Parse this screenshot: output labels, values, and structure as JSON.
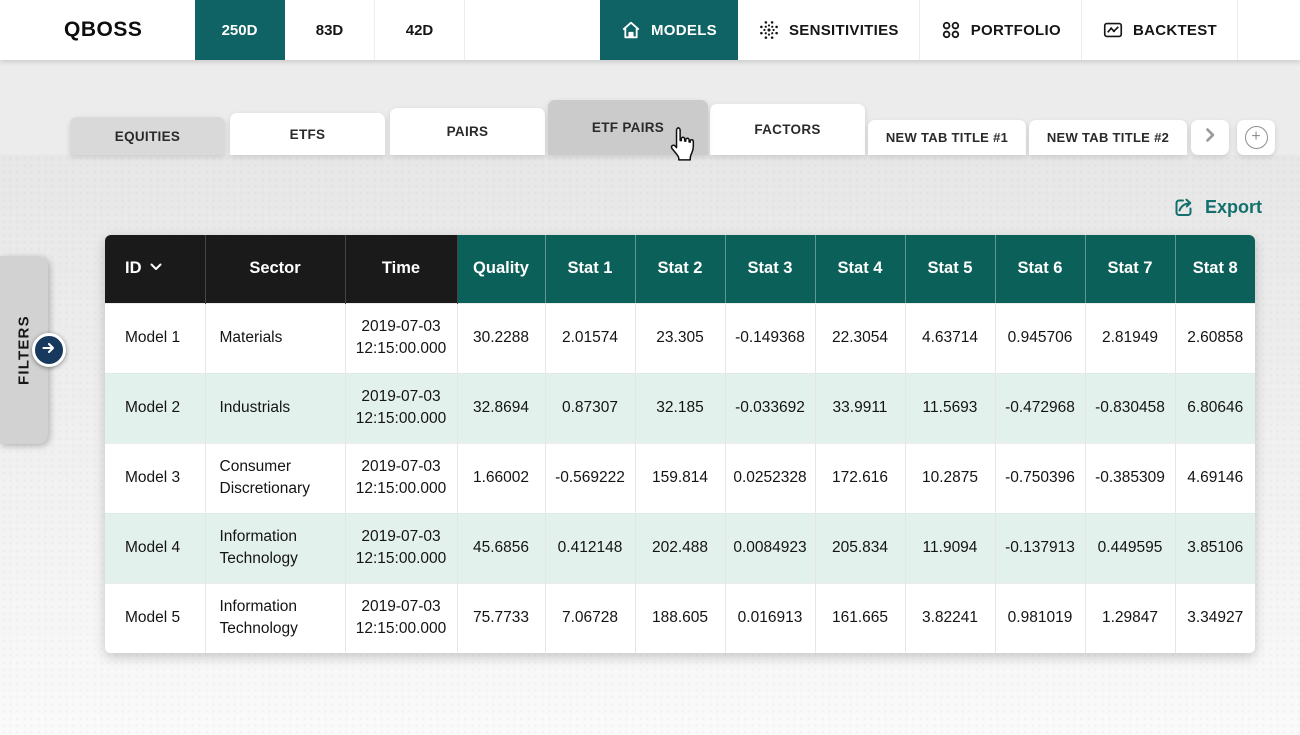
{
  "app": {
    "brand": "QBOSS"
  },
  "topbar": {
    "periods": [
      {
        "label": "250D",
        "active": true
      },
      {
        "label": "83D",
        "active": false
      },
      {
        "label": "42D",
        "active": false
      }
    ],
    "nav": [
      {
        "label": "MODELS",
        "icon": "home-icon",
        "active": true
      },
      {
        "label": "SENSITIVITIES",
        "icon": "burst-icon",
        "active": false
      },
      {
        "label": "PORTFOLIO",
        "icon": "circles-icon",
        "active": false
      },
      {
        "label": "BACKTEST",
        "icon": "chart-icon",
        "active": false
      }
    ]
  },
  "tabstrip": {
    "tabs": [
      {
        "label": "EQUITIES",
        "state": "selected"
      },
      {
        "label": "ETFS",
        "state": "normal"
      },
      {
        "label": "PAIRS",
        "state": "normal"
      },
      {
        "label": "ETF PAIRS",
        "state": "hovered"
      },
      {
        "label": "FACTORS",
        "state": "normal"
      },
      {
        "label": "NEW TAB TITLE #1",
        "state": "normal"
      },
      {
        "label": "NEW TAB TITLE #2",
        "state": "normal"
      }
    ],
    "add_tab_glyph": "+"
  },
  "sidebar": {
    "filters_label": "FILTERS"
  },
  "toolbar": {
    "export_label": "Export"
  },
  "table": {
    "columns": [
      {
        "label": "ID",
        "theme": "dark",
        "sortable": true
      },
      {
        "label": "Sector",
        "theme": "dark"
      },
      {
        "label": "Time",
        "theme": "dark"
      },
      {
        "label": "Quality",
        "theme": "teal"
      },
      {
        "label": "Stat 1",
        "theme": "teal"
      },
      {
        "label": "Stat 2",
        "theme": "teal"
      },
      {
        "label": "Stat 3",
        "theme": "teal"
      },
      {
        "label": "Stat 4",
        "theme": "teal"
      },
      {
        "label": "Stat 5",
        "theme": "teal"
      },
      {
        "label": "Stat 6",
        "theme": "teal"
      },
      {
        "label": "Stat 7",
        "theme": "teal"
      },
      {
        "label": "Stat 8",
        "theme": "teal"
      }
    ],
    "rows": [
      {
        "id": "Model 1",
        "sector": "Materials",
        "time": "2019-07-03 12:15:00.000",
        "values": [
          "30.2288",
          "2.01574",
          "23.305",
          "-0.149368",
          "22.3054",
          "4.63714",
          "0.945706",
          "2.81949",
          "2.60858"
        ]
      },
      {
        "id": "Model 2",
        "sector": "Industrials",
        "time": "2019-07-03 12:15:00.000",
        "values": [
          "32.8694",
          "0.87307",
          "32.185",
          "-0.033692",
          "33.9911",
          "11.5693",
          "-0.472968",
          "-0.830458",
          "6.80646"
        ]
      },
      {
        "id": "Model 3",
        "sector": "Consumer Discretionary",
        "time": "2019-07-03 12:15:00.000",
        "values": [
          "1.66002",
          "-0.569222",
          "159.814",
          "0.0252328",
          "172.616",
          "10.2875",
          "-0.750396",
          "-0.385309",
          "4.69146"
        ]
      },
      {
        "id": "Model 4",
        "sector": "Information Technology",
        "time": "2019-07-03 12:15:00.000",
        "values": [
          "45.6856",
          "0.412148",
          "202.488",
          "0.0084923",
          "205.834",
          "11.9094",
          "-0.137913",
          "0.449595",
          "3.85106"
        ]
      },
      {
        "id": "Model 5",
        "sector": "Information Technology",
        "time": "2019-07-03 12:15:00.000",
        "values": [
          "75.7733",
          "7.06728",
          "188.605",
          "0.016913",
          "161.665",
          "3.82241",
          "0.981019",
          "1.29847",
          "3.34927"
        ]
      }
    ]
  },
  "colors": {
    "teal_nav": "#106365",
    "teal_header": "#0b6159",
    "dark_header": "#1a1a1a",
    "mint_row": "#e3f1ec",
    "navy_button": "#17395d",
    "export_teal": "#14706d"
  }
}
